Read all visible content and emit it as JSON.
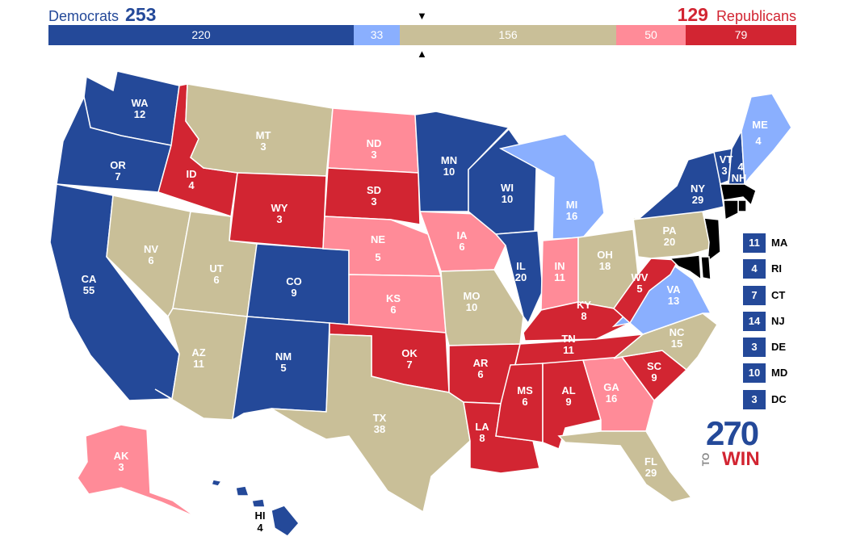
{
  "header": {
    "dem_label": "Democrats",
    "dem_total": "253",
    "rep_total": "129",
    "rep_label": "Republicans",
    "marker_down": "▼",
    "marker_up": "▲"
  },
  "bar": {
    "segments": [
      {
        "value": "220",
        "category": "safe-dem",
        "color": "#244999"
      },
      {
        "value": "33",
        "category": "lean-dem",
        "color": "#8aaffe"
      },
      {
        "value": "156",
        "category": "tossup",
        "color": "#c9bf98"
      },
      {
        "value": "50",
        "category": "lean-rep",
        "color": "#ff8b98"
      },
      {
        "value": "79",
        "category": "safe-rep",
        "color": "#d22532"
      }
    ]
  },
  "colors": {
    "safe_dem": "#244999",
    "lean_dem": "#8aaffe",
    "tossup": "#c9bf98",
    "lean_rep": "#ff8b98",
    "safe_rep": "#d22532"
  },
  "states": {
    "WA": {
      "abbr": "WA",
      "ev": "12",
      "cat": "safe_dem"
    },
    "OR": {
      "abbr": "OR",
      "ev": "7",
      "cat": "safe_dem"
    },
    "CA": {
      "abbr": "CA",
      "ev": "55",
      "cat": "safe_dem"
    },
    "ID": {
      "abbr": "ID",
      "ev": "4",
      "cat": "safe_rep"
    },
    "NV": {
      "abbr": "NV",
      "ev": "6",
      "cat": "tossup"
    },
    "MT": {
      "abbr": "MT",
      "ev": "3",
      "cat": "tossup"
    },
    "WY": {
      "abbr": "WY",
      "ev": "3",
      "cat": "safe_rep"
    },
    "UT": {
      "abbr": "UT",
      "ev": "6",
      "cat": "tossup"
    },
    "AZ": {
      "abbr": "AZ",
      "ev": "11",
      "cat": "tossup"
    },
    "CO": {
      "abbr": "CO",
      "ev": "9",
      "cat": "safe_dem"
    },
    "NM": {
      "abbr": "NM",
      "ev": "5",
      "cat": "safe_dem"
    },
    "ND": {
      "abbr": "ND",
      "ev": "3",
      "cat": "lean_rep"
    },
    "SD": {
      "abbr": "SD",
      "ev": "3",
      "cat": "safe_rep"
    },
    "NE": {
      "abbr": "NE",
      "ev": "5",
      "cat": "lean_rep"
    },
    "KS": {
      "abbr": "KS",
      "ev": "6",
      "cat": "lean_rep"
    },
    "OK": {
      "abbr": "OK",
      "ev": "7",
      "cat": "safe_rep"
    },
    "TX": {
      "abbr": "TX",
      "ev": "38",
      "cat": "tossup"
    },
    "MN": {
      "abbr": "MN",
      "ev": "10",
      "cat": "safe_dem"
    },
    "IA": {
      "abbr": "IA",
      "ev": "6",
      "cat": "lean_rep"
    },
    "MO": {
      "abbr": "MO",
      "ev": "10",
      "cat": "tossup"
    },
    "AR": {
      "abbr": "AR",
      "ev": "6",
      "cat": "safe_rep"
    },
    "LA": {
      "abbr": "LA",
      "ev": "8",
      "cat": "safe_rep"
    },
    "WI": {
      "abbr": "WI",
      "ev": "10",
      "cat": "safe_dem"
    },
    "IL": {
      "abbr": "IL",
      "ev": "20",
      "cat": "safe_dem"
    },
    "MI": {
      "abbr": "MI",
      "ev": "16",
      "cat": "lean_dem"
    },
    "IN": {
      "abbr": "IN",
      "ev": "11",
      "cat": "lean_rep"
    },
    "OH": {
      "abbr": "OH",
      "ev": "18",
      "cat": "tossup"
    },
    "KY": {
      "abbr": "KY",
      "ev": "8",
      "cat": "safe_rep"
    },
    "TN": {
      "abbr": "TN",
      "ev": "11",
      "cat": "safe_rep"
    },
    "MS": {
      "abbr": "MS",
      "ev": "6",
      "cat": "safe_rep"
    },
    "AL": {
      "abbr": "AL",
      "ev": "9",
      "cat": "safe_rep"
    },
    "GA": {
      "abbr": "GA",
      "ev": "16",
      "cat": "lean_rep"
    },
    "FL": {
      "abbr": "FL",
      "ev": "29",
      "cat": "tossup"
    },
    "SC": {
      "abbr": "SC",
      "ev": "9",
      "cat": "safe_rep"
    },
    "NC": {
      "abbr": "NC",
      "ev": "15",
      "cat": "tossup"
    },
    "VA": {
      "abbr": "VA",
      "ev": "13",
      "cat": "lean_dem"
    },
    "WV": {
      "abbr": "WV",
      "ev": "5",
      "cat": "safe_rep"
    },
    "PA": {
      "abbr": "PA",
      "ev": "20",
      "cat": "tossup"
    },
    "NY": {
      "abbr": "NY",
      "ev": "29",
      "cat": "safe_dem"
    },
    "VT": {
      "abbr": "VT",
      "ev": "3",
      "cat": "safe_dem"
    },
    "NH": {
      "abbr": "NH",
      "ev": "4",
      "cat": "safe_dem"
    },
    "ME": {
      "abbr": "ME",
      "ev": "4",
      "cat": "lean_dem"
    },
    "AK": {
      "abbr": "AK",
      "ev": "3",
      "cat": "lean_rep"
    },
    "HI": {
      "abbr": "HI",
      "ev": "4",
      "cat": "safe_dem"
    }
  },
  "small_states": [
    {
      "ev": "11",
      "abbr": "MA",
      "cat": "safe_dem"
    },
    {
      "ev": "4",
      "abbr": "RI",
      "cat": "safe_dem"
    },
    {
      "ev": "7",
      "abbr": "CT",
      "cat": "safe_dem"
    },
    {
      "ev": "14",
      "abbr": "NJ",
      "cat": "safe_dem"
    },
    {
      "ev": "3",
      "abbr": "DE",
      "cat": "safe_dem"
    },
    {
      "ev": "10",
      "abbr": "MD",
      "cat": "safe_dem"
    },
    {
      "ev": "3",
      "abbr": "DC",
      "cat": "safe_dem"
    }
  ],
  "logo": {
    "num": "270",
    "to": "TO",
    "win": "WIN"
  }
}
